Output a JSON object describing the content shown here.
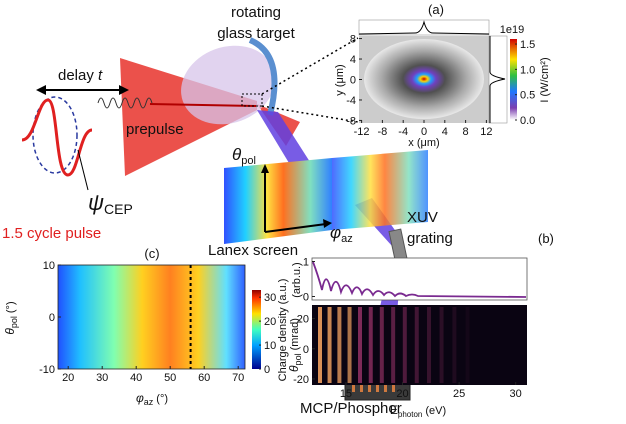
{
  "diagram": {
    "target_line1": "rotating",
    "target_line2": "glass target",
    "delay": {
      "word": "delay",
      "symbol": "t"
    },
    "prepulse": "prepulse",
    "psi": {
      "main": "ψ",
      "sub": "CEP"
    },
    "pulse": "1.5 cycle pulse",
    "theta": {
      "main": "θ",
      "sub": "pol"
    },
    "screen": "Lanex screen",
    "phi": {
      "main": "φ",
      "sub": "az"
    },
    "xuv": "XUV",
    "grating": "grating",
    "detector": "MCP/Phosphor"
  },
  "panels": {
    "a": {
      "label": "(a)",
      "xlabel": "x (μm)",
      "ylabel": "y (μm)",
      "xlim": [
        -12.5,
        12.5
      ],
      "ylim": [
        -8.5,
        8.5
      ],
      "xticks": [
        -12,
        -8,
        -4,
        0,
        4,
        8,
        12
      ],
      "yticks": [
        -8,
        -4,
        0,
        4,
        8
      ],
      "colorbar_exponent": "1e19",
      "colorbar_label": "I (W/cm²)",
      "clim": [
        0,
        1.6
      ],
      "cticks": [
        {
          "value": 0,
          "label": "0.0"
        },
        {
          "value": 0.5,
          "label": "0.5"
        },
        {
          "value": 1,
          "label": "1.0"
        },
        {
          "value": 1.5,
          "label": "1.5"
        }
      ]
    },
    "b": {
      "label": "(b)",
      "top_ylabel": "(arb.u.)",
      "top_ylim": [
        -0.1,
        1.1
      ],
      "top_yticks": [
        0,
        1
      ],
      "ylabel": {
        "main": "θ",
        "sub": "pol",
        "unit": "(mrad)"
      },
      "xlabel": {
        "main": "E",
        "sub": "photon",
        "unit": "(eV)"
      },
      "xlim": [
        12,
        31
      ],
      "ylim": [
        -24,
        29
      ],
      "xticks": [
        15,
        20,
        25,
        30
      ],
      "yticks": [
        -20,
        0,
        20
      ]
    },
    "c": {
      "label": "(c)",
      "ylabel": {
        "main": "θ",
        "sub": "pol",
        "unit": "(°)"
      },
      "xlabel": {
        "main": "φ",
        "sub": "az",
        "unit": "(°)"
      },
      "xlim": [
        17,
        72
      ],
      "ylim": [
        -10,
        10
      ],
      "xticks": [
        20,
        30,
        40,
        50,
        60,
        70
      ],
      "yticks": [
        -10,
        0,
        10
      ],
      "cut_x": 56,
      "colorbar_label": "Charge density (a.u.)",
      "clim": [
        0,
        33
      ],
      "cticks": [
        0,
        10,
        20,
        30
      ]
    }
  }
}
